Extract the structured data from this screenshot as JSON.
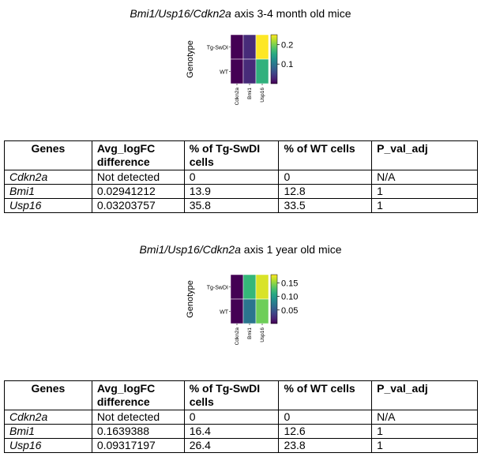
{
  "sections": [
    {
      "title_italic": "Bmi1/Usp16/Cdkn2a",
      "title_rest": " axis 3-4 month old mice",
      "heatmap": {
        "ylabel": "Genotype",
        "row_labels": [
          "Tg-SwDI",
          "WT"
        ],
        "col_labels": [
          "Cdkn2a",
          "Bmi1",
          "Usp16"
        ],
        "values": [
          [
            0.0,
            0.03,
            0.25
          ],
          [
            0.0,
            0.03,
            0.16
          ]
        ],
        "vmin": 0.0,
        "vmax": 0.25,
        "colorbar_ticks": [
          "0.2",
          "0.1"
        ],
        "colormap": "viridis"
      },
      "table": {
        "headers": [
          "Genes",
          "Avg_logFC difference",
          "% of Tg-SwDI cells",
          "% of WT cells",
          "P_val_adj"
        ],
        "rows": [
          [
            "Cdkn2a",
            "Not detected",
            "0",
            "0",
            "N/A"
          ],
          [
            "Bmi1",
            "0.02941212",
            "13.9",
            "12.8",
            "1"
          ],
          [
            "Usp16",
            "0.03203757",
            "35.8",
            "33.5",
            "1"
          ]
        ]
      }
    },
    {
      "title_italic": "Bmi1/Usp16/Cdkn2a",
      "title_rest": " axis 1 year old mice",
      "heatmap": {
        "ylabel": "Genotype",
        "row_labels": [
          "Tg-SwDI",
          "WT"
        ],
        "col_labels": [
          "Cdkn2a",
          "Bmi1",
          "Usp16"
        ],
        "values": [
          [
            0.0,
            0.12,
            0.17
          ],
          [
            0.0,
            0.07,
            0.14
          ]
        ],
        "vmin": 0.0,
        "vmax": 0.18,
        "colorbar_ticks": [
          "0.15",
          "0.10",
          "0.05"
        ],
        "colormap": "viridis"
      },
      "table": {
        "headers": [
          "Genes",
          "Avg_logFC difference",
          "% of Tg-SwDI cells",
          "% of WT cells",
          "P_val_adj"
        ],
        "rows": [
          [
            "Cdkn2a",
            "Not detected",
            "0",
            "0",
            "N/A"
          ],
          [
            "Bmi1",
            "0.1639388",
            "16.4",
            "12.6",
            "1"
          ],
          [
            "Usp16",
            "0.09317197",
            "26.4",
            "23.8",
            "1"
          ]
        ]
      }
    }
  ]
}
